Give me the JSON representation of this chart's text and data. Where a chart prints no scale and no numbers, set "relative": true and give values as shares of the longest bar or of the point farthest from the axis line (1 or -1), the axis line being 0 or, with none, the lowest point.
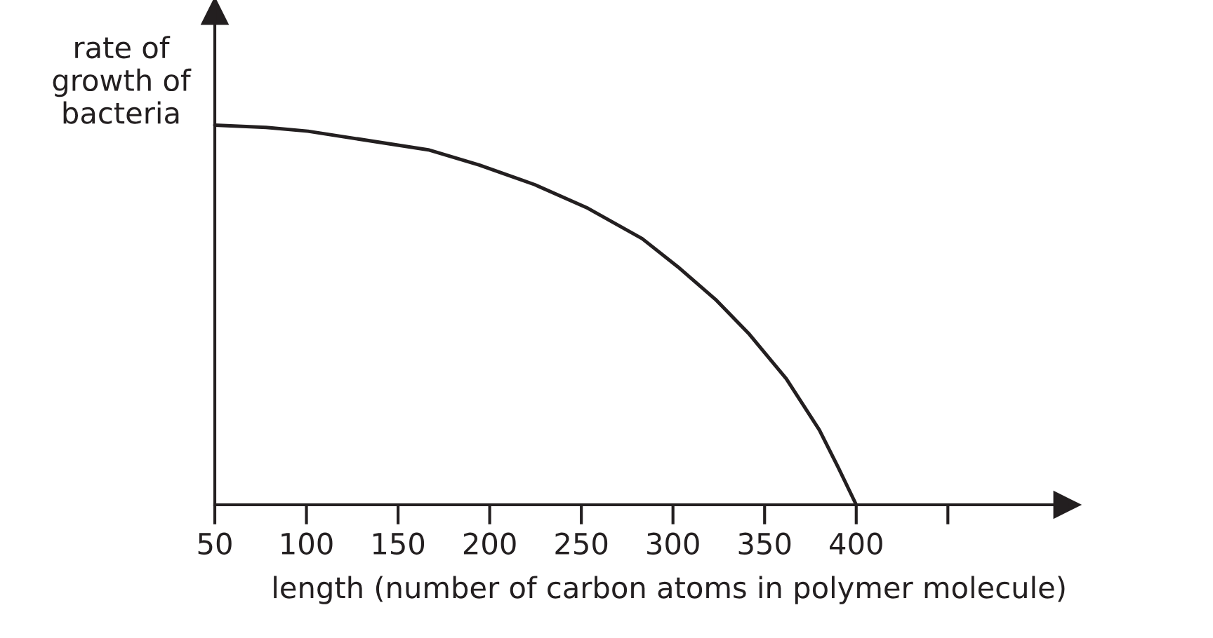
{
  "chart_data": {
    "type": "line",
    "relative": true,
    "xlabel": "length (number of carbon atoms in polymer molecule)",
    "ylabel": "rate of\ngrowth of\nbacteria",
    "xlim": [
      50,
      515
    ],
    "xticks": [
      50,
      100,
      150,
      200,
      250,
      300,
      350,
      400,
      {
        "value": 450,
        "label": null
      }
    ],
    "grid": false,
    "marker": "none",
    "line_style": "solid",
    "series": [
      {
        "color": "#231f20",
        "x": [
          50,
          78,
          100.8,
          166.5,
          194.3,
          224.7,
          253.6,
          283.2,
          302.6,
          323.2,
          341.7,
          361.8,
          379.9,
          390.2,
          400
        ],
        "values": [
          1,
          0.994,
          0.984,
          0.935,
          0.895,
          0.843,
          0.781,
          0.701,
          0.627,
          0.541,
          0.449,
          0.332,
          0.197,
          0.098,
          0
        ]
      }
    ]
  }
}
